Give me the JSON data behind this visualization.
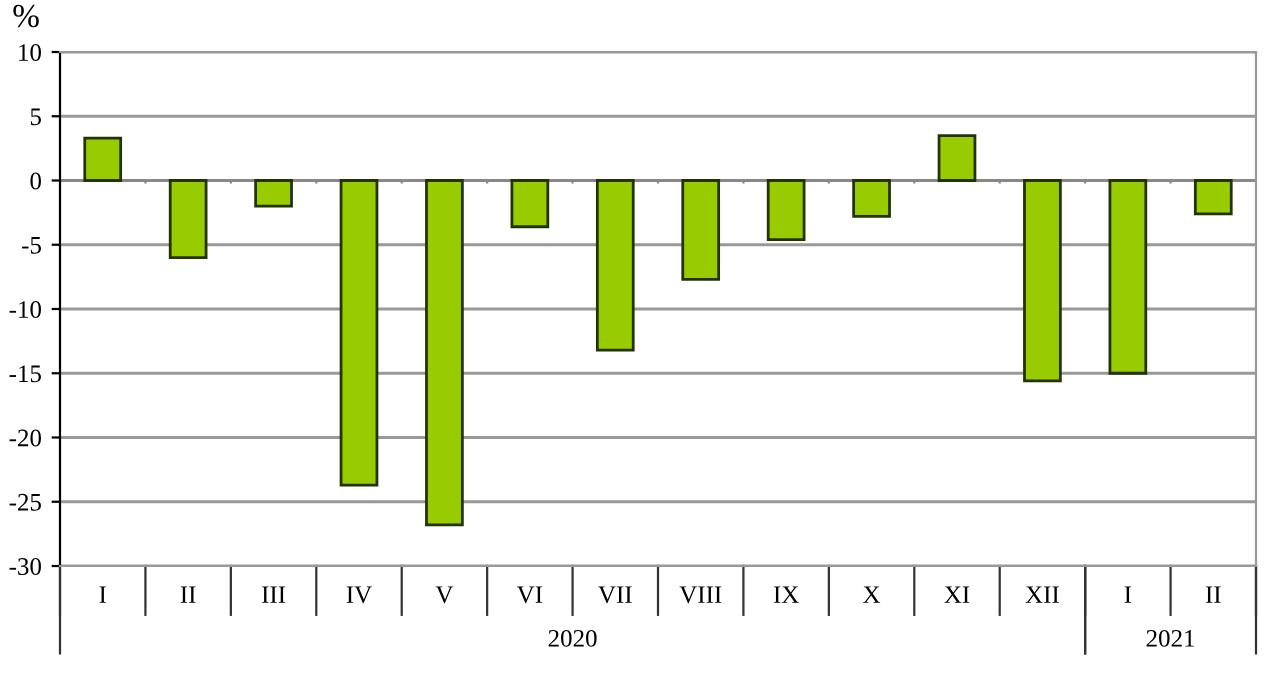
{
  "chart_data": {
    "type": "bar",
    "ylabel": "%",
    "categories": [
      "I",
      "II",
      "III",
      "IV",
      "V",
      "VI",
      "VII",
      "VIII",
      "IX",
      "X",
      "XI",
      "XII",
      "I",
      "II"
    ],
    "values": [
      3.3,
      -6.0,
      -2.0,
      -23.7,
      -26.8,
      -3.6,
      -13.2,
      -7.7,
      -4.6,
      -2.8,
      3.5,
      -15.6,
      -15.0,
      -2.6
    ],
    "color": "#99cc00",
    "ylim": [
      -30,
      10
    ],
    "yticks": [
      -30,
      -25,
      -20,
      -15,
      -10,
      -5,
      0,
      5,
      10
    ],
    "grid": "y",
    "annotations": [
      "2020",
      "2021"
    ]
  }
}
